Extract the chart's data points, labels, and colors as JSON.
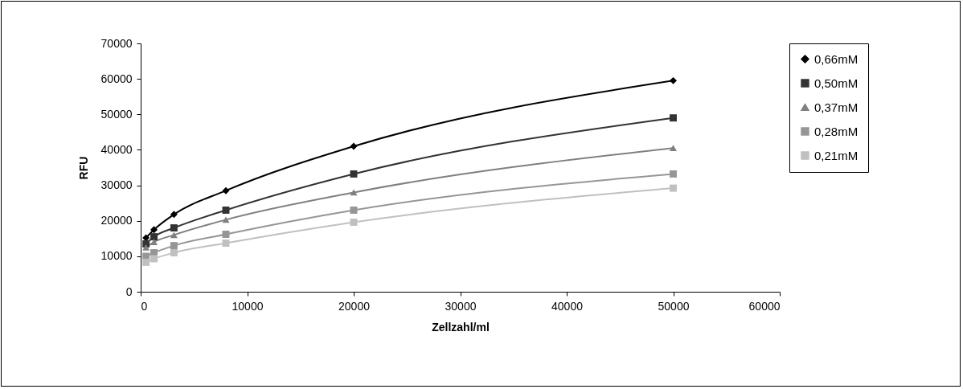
{
  "chart_data": {
    "type": "line",
    "xlabel": "Zellzahl/ml",
    "ylabel": "RFU",
    "x": [
      500,
      1250,
      3125,
      8000,
      20000,
      50000
    ],
    "series": [
      {
        "name": "0,66mM",
        "color": "#000000",
        "marker": "diamond",
        "values": [
          15200,
          17500,
          21800,
          28500,
          41000,
          59500
        ]
      },
      {
        "name": "0,50mM",
        "color": "#333333",
        "marker": "square",
        "values": [
          13500,
          15500,
          18000,
          23000,
          33200,
          49000
        ]
      },
      {
        "name": "0,37mM",
        "color": "#808080",
        "marker": "triangle",
        "values": [
          12500,
          14000,
          16000,
          20300,
          28000,
          40500
        ]
      },
      {
        "name": "0,28mM",
        "color": "#969696",
        "marker": "square",
        "values": [
          10000,
          11000,
          13000,
          16200,
          23000,
          33200
        ]
      },
      {
        "name": "0,21mM",
        "color": "#c0c0c0",
        "marker": "square",
        "values": [
          8300,
          9300,
          11000,
          13700,
          19600,
          29200
        ]
      }
    ],
    "xlim": [
      0,
      60000
    ],
    "xticks": [
      0,
      10000,
      20000,
      30000,
      40000,
      50000,
      60000
    ],
    "ylim": [
      0,
      70000
    ],
    "yticks": [
      0,
      10000,
      20000,
      30000,
      40000,
      50000,
      60000,
      70000
    ],
    "grid": false,
    "legend": "right",
    "line_style": "solid"
  }
}
